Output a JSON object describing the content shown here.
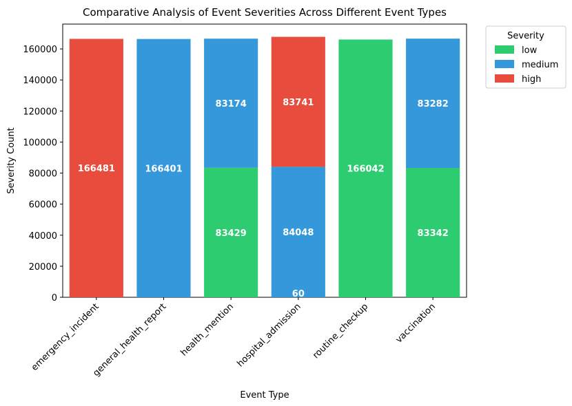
{
  "chart_data": {
    "type": "bar",
    "stacked": true,
    "title": "Comparative Analysis of Event Severities Across Different Event Types",
    "xlabel": "Event Type",
    "ylabel": "Severity Count",
    "ylim": [
      0,
      176000
    ],
    "yticks": [
      0,
      20000,
      40000,
      60000,
      80000,
      100000,
      120000,
      140000,
      160000
    ],
    "grid": false,
    "legend": {
      "title": "Severity",
      "placement": "outside-right"
    },
    "categories": [
      "emergency_incident",
      "general_health_report",
      "health_mention",
      "hospital_admission",
      "routine_checkup",
      "vaccination"
    ],
    "series": [
      {
        "name": "low",
        "color": "#2ecc71",
        "values": [
          0,
          0,
          83429,
          0,
          166042,
          83342
        ]
      },
      {
        "name": "medium",
        "color": "#3498db",
        "values": [
          0,
          166401,
          83174,
          84048,
          0,
          83282
        ]
      },
      {
        "name": "high",
        "color": "#e74c3c",
        "values": [
          166481,
          0,
          0,
          83741,
          0,
          0
        ]
      }
    ],
    "annotations": [
      {
        "category": "hospital_admission",
        "text": "60"
      }
    ]
  }
}
